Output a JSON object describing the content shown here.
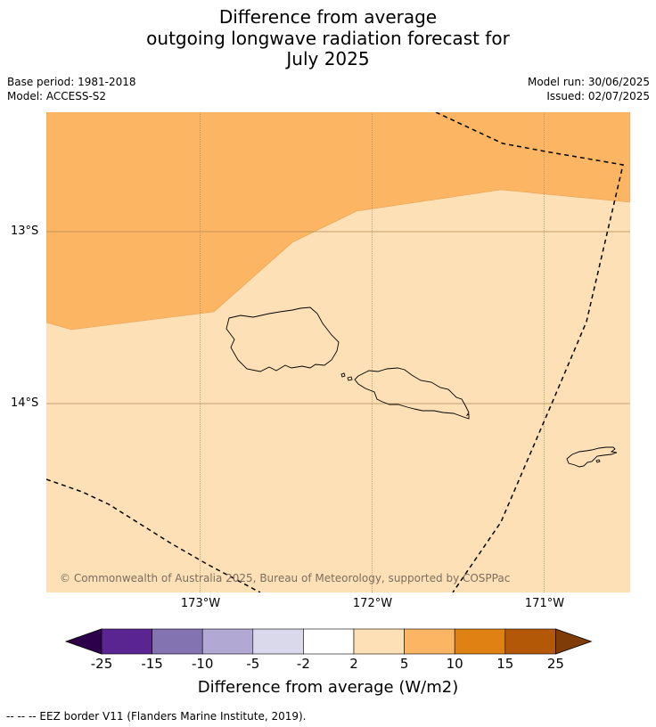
{
  "header": {
    "title_line1": "Difference from average",
    "title_line2": "outgoing longwave radiation forecast for",
    "title_line3": "July 2025",
    "base_period": "Base period: 1981-2018",
    "model": "Model: ACCESS-S2",
    "model_run": "Model run: 30/06/2025",
    "issued": "Issued: 02/07/2025"
  },
  "map": {
    "lat_labels": [
      "13°S",
      "14°S"
    ],
    "lon_labels": [
      "173°W",
      "172°W",
      "171°W"
    ],
    "copyright": "© Commonwealth of Australia 2025, Bureau of Meteorology, supported by COSPPac",
    "colors": {
      "band_5_10": "#fbb563",
      "band_2_5": "#fde0b5",
      "grid": "#b08a5a",
      "coast": "#000000",
      "eez": "#000000"
    }
  },
  "colorbar": {
    "ticks": [
      "-25",
      "-15",
      "-10",
      "-5",
      "-2",
      "2",
      "5",
      "10",
      "15",
      "25"
    ],
    "colors": [
      "#5a2590",
      "#8373b0",
      "#b1a8d4",
      "#dad9ec",
      "#ffffff",
      "#fde0b5",
      "#fbb563",
      "#e08213",
      "#b35806"
    ],
    "under_color": "#2d004b",
    "over_color": "#7f3b08",
    "label": "Difference from average (W/m2)"
  },
  "legend": {
    "eez_text": "--  --  -- EEZ border V11 (Flanders Marine Institute, 2019)."
  }
}
